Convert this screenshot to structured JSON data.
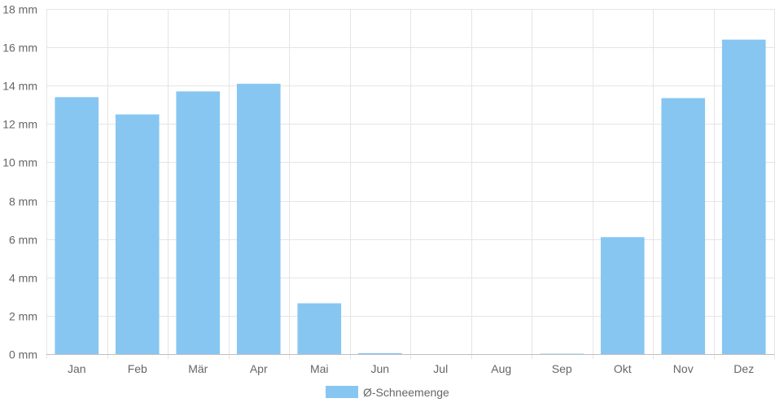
{
  "chart_data": {
    "type": "bar",
    "categories": [
      "Jan",
      "Feb",
      "Mär",
      "Apr",
      "Mai",
      "Jun",
      "Jul",
      "Aug",
      "Sep",
      "Okt",
      "Nov",
      "Dez"
    ],
    "series": [
      {
        "name": "Ø-Schneemenge",
        "values": [
          13.4,
          12.5,
          13.7,
          14.1,
          2.65,
          0.05,
          0,
          0,
          0.02,
          6.1,
          13.35,
          16.4
        ],
        "color": "#87c6f1"
      }
    ],
    "y_ticks": [
      "0 mm",
      "2 mm",
      "4 mm",
      "6 mm",
      "8 mm",
      "10 mm",
      "12 mm",
      "14 mm",
      "16 mm",
      "18 mm"
    ],
    "ylim": [
      0,
      18
    ],
    "unit": "mm",
    "grid": true,
    "legend": {
      "position": "bottom",
      "label": "Ø-Schneemenge"
    }
  }
}
